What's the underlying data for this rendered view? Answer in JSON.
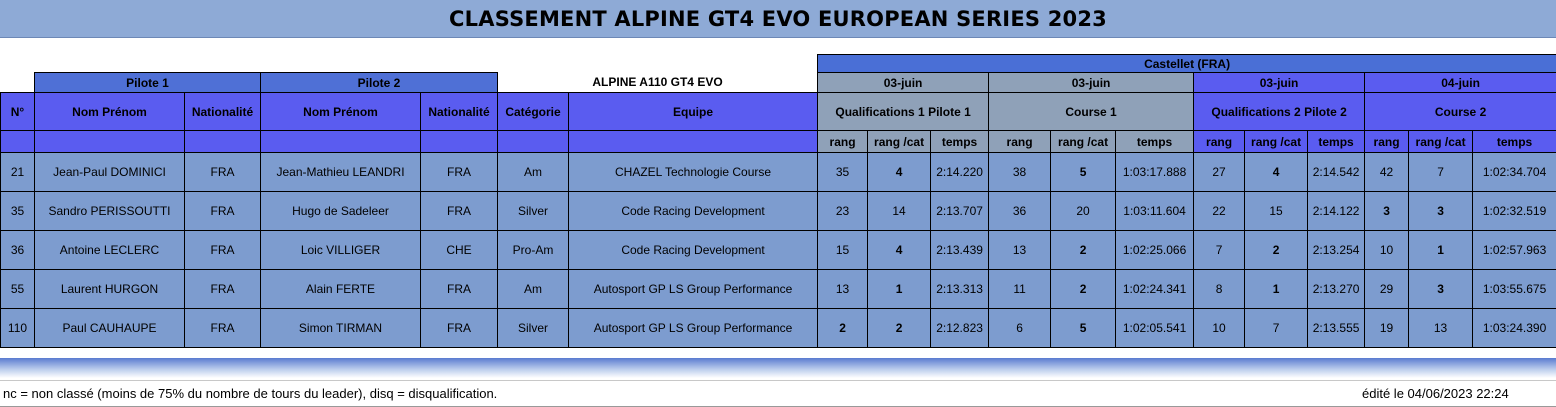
{
  "title": "CLASSEMENT ALPINE GT4 EVO EUROPEAN SERIES 2023",
  "groups": {
    "pilote1": "Pilote 1",
    "pilote2": "Pilote 2",
    "car": "ALPINE A110 GT4 EVO"
  },
  "venue": "Castellet (FRA)",
  "dates": {
    "q1": "03-juin",
    "c1": "03-juin",
    "q2": "03-juin",
    "c2": "04-juin"
  },
  "columns": {
    "num": "N°",
    "name1": "Nom Prénom",
    "nat1": "Nationalité",
    "name2": "Nom Prénom",
    "nat2": "Nationalité",
    "cat": "Catégorie",
    "team": "Equipe",
    "q1": "Qualifications 1 Pilote 1",
    "c1": "Course 1",
    "q2": "Qualifications 2 Pilote 2",
    "c2": "Course 2",
    "rang": "rang",
    "rangcat": "rang /cat",
    "temps": "temps"
  },
  "rows": [
    {
      "num": "21",
      "p1": "Jean-Paul DOMINICI",
      "n1": "FRA",
      "p2": "Jean-Mathieu LEANDRI",
      "n2": "FRA",
      "cat": "Am",
      "team": "CHAZEL Technologie Course",
      "q1": [
        "35",
        "4",
        "2:14.220"
      ],
      "c1": [
        "38",
        "5",
        "1:03:17.888"
      ],
      "q2": [
        "27",
        "4",
        "2:14.542"
      ],
      "c2": [
        "42",
        "7",
        "1:02:34.704"
      ],
      "red": [
        false,
        true,
        false,
        true,
        false,
        true,
        false,
        false
      ]
    },
    {
      "num": "35",
      "p1": "Sandro PERISSOUTTI",
      "n1": "FRA",
      "p2": "Hugo de Sadeleer",
      "n2": "FRA",
      "cat": "Silver",
      "team": "Code Racing Development",
      "q1": [
        "23",
        "14",
        "2:13.707"
      ],
      "c1": [
        "36",
        "20",
        "1:03:11.604"
      ],
      "q2": [
        "22",
        "15",
        "2:14.122"
      ],
      "c2": [
        "3",
        "3",
        "1:02:32.519"
      ],
      "red": [
        false,
        false,
        false,
        false,
        false,
        false,
        true,
        true
      ]
    },
    {
      "num": "36",
      "p1": "Antoine LECLERC",
      "n1": "FRA",
      "p2": "Loic VILLIGER",
      "n2": "CHE",
      "cat": "Pro-Am",
      "team": "Code Racing Development",
      "q1": [
        "15",
        "4",
        "2:13.439"
      ],
      "c1": [
        "13",
        "2",
        "1:02:25.066"
      ],
      "q2": [
        "7",
        "2",
        "2:13.254"
      ],
      "c2": [
        "10",
        "1",
        "1:02:57.963"
      ],
      "red": [
        false,
        true,
        false,
        true,
        false,
        true,
        false,
        true
      ]
    },
    {
      "num": "55",
      "p1": "Laurent HURGON",
      "n1": "FRA",
      "p2": "Alain FERTE",
      "n2": "FRA",
      "cat": "Am",
      "team": "Autosport GP LS Group Performance",
      "q1": [
        "13",
        "1",
        "2:13.313"
      ],
      "c1": [
        "11",
        "2",
        "1:02:24.341"
      ],
      "q2": [
        "8",
        "1",
        "2:13.270"
      ],
      "c2": [
        "29",
        "3",
        "1:03:55.675"
      ],
      "red": [
        false,
        true,
        false,
        true,
        false,
        true,
        false,
        true
      ]
    },
    {
      "num": "110",
      "p1": "Paul CAUHAUPE",
      "n1": "FRA",
      "p2": "Simon TIRMAN",
      "n2": "FRA",
      "cat": "Silver",
      "team": "Autosport GP LS Group Performance",
      "q1": [
        "2",
        "2",
        "2:12.823"
      ],
      "c1": [
        "6",
        "5",
        "1:02:05.541"
      ],
      "q2": [
        "10",
        "7",
        "2:13.555"
      ],
      "c2": [
        "19",
        "13",
        "1:03:24.390"
      ],
      "red": [
        true,
        true,
        false,
        true,
        false,
        false,
        false,
        false
      ]
    }
  ],
  "footer": {
    "note": "nc = non classé (moins de 75% du nombre de tours du leader), disq = disqualification.",
    "edited": "édité le  04/06/2023 22:24"
  }
}
